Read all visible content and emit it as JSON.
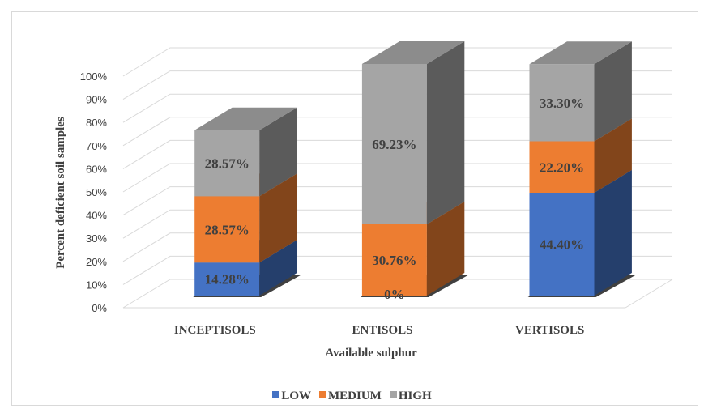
{
  "chart_data": {
    "type": "bar",
    "stacked": true,
    "three_d": true,
    "xlabel": "Available sulphur",
    "ylabel": "Percent deficient soil samples",
    "ylim": [
      0,
      100
    ],
    "y_ticks": [
      "0%",
      "10%",
      "20%",
      "30%",
      "40%",
      "50%",
      "60%",
      "70%",
      "80%",
      "90%",
      "100%"
    ],
    "grid": true,
    "legend_position": "bottom",
    "categories": [
      "INCEPTISOLS",
      "ENTISOLS",
      "VERTISOLS"
    ],
    "series": [
      {
        "name": "LOW",
        "color": "#4472c4",
        "values": [
          14.28,
          0,
          44.4
        ],
        "labels": [
          "14.28%",
          "0%",
          "44.40%"
        ]
      },
      {
        "name": "MEDIUM",
        "color": "#ed7d31",
        "values": [
          28.57,
          30.76,
          22.2
        ],
        "labels": [
          "28.57%",
          "30.76%",
          "22.20%"
        ]
      },
      {
        "name": "HIGH",
        "color": "#a5a5a5",
        "values": [
          28.57,
          69.23,
          33.3
        ],
        "labels": [
          "28.57%",
          "69.23%",
          "33.30%"
        ]
      }
    ]
  }
}
